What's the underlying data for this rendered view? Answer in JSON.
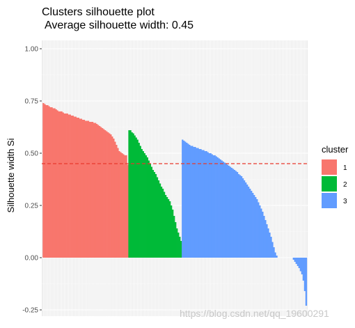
{
  "chart_data": {
    "type": "bar",
    "title": "Clusters silhouette plot",
    "subtitle": "Average silhouette width: 0.45",
    "xlabel": "",
    "ylabel": "Silhouette width Si",
    "ylim": [
      -0.28,
      1.04
    ],
    "yticks": [
      -0.25,
      0.0,
      0.25,
      0.5,
      0.75,
      1.0
    ],
    "ytick_labels": [
      "-0.25",
      "0.00",
      "0.25",
      "0.50",
      "0.75",
      "1.00"
    ],
    "reference_line": {
      "value": 0.45,
      "color": "#e8382c",
      "style": "dashed"
    },
    "grid": true,
    "legend": {
      "title": "cluster",
      "position": "right",
      "entries": [
        "1",
        "2",
        "3"
      ]
    },
    "colors": {
      "1": "#F8766D",
      "2": "#00BA38",
      "3": "#619CFF"
    },
    "clusters": [
      {
        "name": "1",
        "values": [
          0.74,
          0.735,
          0.73,
          0.73,
          0.725,
          0.72,
          0.72,
          0.715,
          0.715,
          0.71,
          0.705,
          0.7,
          0.7,
          0.7,
          0.695,
          0.69,
          0.69,
          0.69,
          0.685,
          0.685,
          0.68,
          0.68,
          0.675,
          0.675,
          0.67,
          0.67,
          0.665,
          0.665,
          0.66,
          0.66,
          0.655,
          0.655,
          0.655,
          0.65,
          0.65,
          0.65,
          0.645,
          0.645,
          0.64,
          0.635,
          0.63,
          0.625,
          0.62,
          0.615,
          0.61,
          0.605,
          0.6,
          0.595,
          0.59,
          0.58,
          0.57,
          0.555,
          0.54,
          0.525,
          0.51,
          0.505,
          0.5,
          0.495,
          0.49,
          0.49,
          0.445
        ]
      },
      {
        "name": "2",
        "values": [
          0.61,
          0.61,
          0.6,
          0.595,
          0.585,
          0.575,
          0.565,
          0.55,
          0.535,
          0.52,
          0.51,
          0.5,
          0.49,
          0.48,
          0.465,
          0.45,
          0.435,
          0.42,
          0.41,
          0.4,
          0.385,
          0.37,
          0.355,
          0.34,
          0.33,
          0.315,
          0.3,
          0.29,
          0.28,
          0.27,
          0.25,
          0.23,
          0.2,
          0.17,
          0.14,
          0.12,
          0.1,
          0.08
        ]
      },
      {
        "name": "3",
        "values": [
          0.565,
          0.56,
          0.555,
          0.55,
          0.545,
          0.54,
          0.535,
          0.535,
          0.53,
          0.53,
          0.525,
          0.525,
          0.52,
          0.52,
          0.515,
          0.515,
          0.51,
          0.51,
          0.505,
          0.5,
          0.5,
          0.495,
          0.49,
          0.49,
          0.485,
          0.48,
          0.475,
          0.47,
          0.465,
          0.46,
          0.455,
          0.45,
          0.445,
          0.44,
          0.435,
          0.43,
          0.425,
          0.42,
          0.415,
          0.41,
          0.4,
          0.395,
          0.39,
          0.38,
          0.37,
          0.36,
          0.35,
          0.34,
          0.33,
          0.32,
          0.31,
          0.3,
          0.29,
          0.28,
          0.265,
          0.25,
          0.235,
          0.22,
          0.2,
          0.18,
          0.16,
          0.14,
          0.12,
          0.1,
          0.075,
          0.05,
          0.025,
          0.01,
          0.0,
          0.0,
          0.0,
          0.0,
          0.0,
          0.0,
          0.0,
          0.0,
          0.0,
          0.0,
          0.0,
          -0.01,
          -0.02,
          -0.03,
          -0.04,
          -0.05,
          -0.065,
          -0.08,
          -0.11,
          -0.16,
          -0.23
        ]
      }
    ]
  },
  "watermark": "https://blog.csdn.net/qq_19600291"
}
